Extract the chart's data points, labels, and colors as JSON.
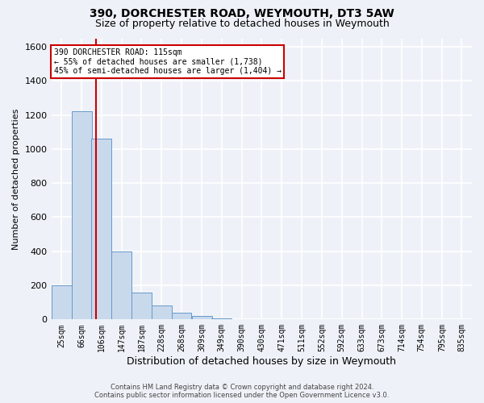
{
  "title1": "390, DORCHESTER ROAD, WEYMOUTH, DT3 5AW",
  "title2": "Size of property relative to detached houses in Weymouth",
  "xlabel": "Distribution of detached houses by size in Weymouth",
  "ylabel": "Number of detached properties",
  "bar_bins": [
    25,
    66,
    106,
    147,
    187,
    228,
    268,
    309,
    349,
    390,
    430,
    471,
    511,
    552,
    592,
    633,
    673,
    714,
    754,
    795,
    835
  ],
  "bar_heights": [
    200,
    1220,
    1060,
    400,
    160,
    80,
    40,
    20,
    5,
    0,
    0,
    0,
    0,
    0,
    0,
    0,
    0,
    0,
    0,
    0,
    0
  ],
  "bar_color": "#c9d9ec",
  "bar_edge_color": "#6699cc",
  "ylim": [
    0,
    1650
  ],
  "yticks": [
    0,
    200,
    400,
    600,
    800,
    1000,
    1200,
    1400,
    1600
  ],
  "property_line_x": 115,
  "property_line_color": "#cc0000",
  "annotation_line1": "390 DORCHESTER ROAD: 115sqm",
  "annotation_line2": "← 55% of detached houses are smaller (1,738)",
  "annotation_line3": "45% of semi-detached houses are larger (1,404) →",
  "annotation_box_color": "#ffffff",
  "annotation_box_edge": "#cc0000",
  "footer1": "Contains HM Land Registry data © Crown copyright and database right 2024.",
  "footer2": "Contains public sector information licensed under the Open Government Licence v3.0.",
  "bg_color": "#eef2f8",
  "grid_color": "#ffffff",
  "title1_fontsize": 10,
  "title2_fontsize": 9,
  "xlabel_fontsize": 9,
  "ylabel_fontsize": 8,
  "bin_width": 41
}
